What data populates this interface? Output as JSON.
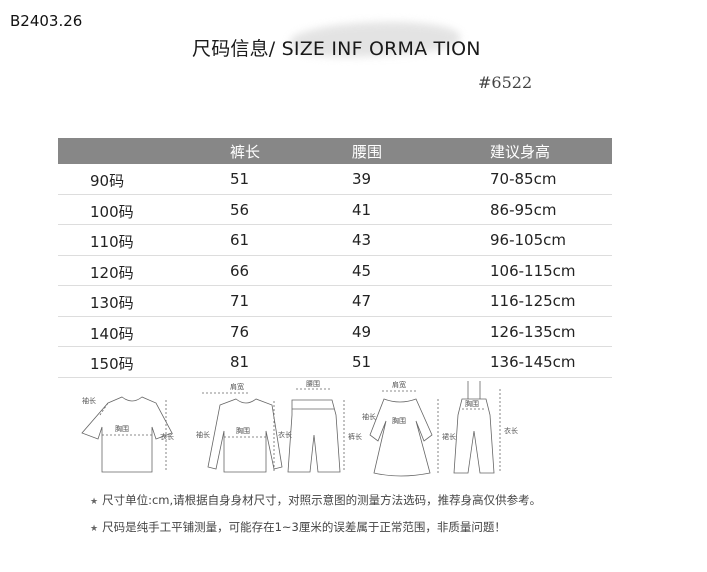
{
  "header": {
    "code": "B2403.26",
    "title": "尺码信息/ SIZE INF ORMA TION",
    "style_number": "#6522"
  },
  "table": {
    "columns": [
      "",
      "裤长",
      "腰围",
      "建议身高"
    ],
    "rows": [
      [
        "90码",
        "51",
        "39",
        "70-85cm"
      ],
      [
        "100码",
        "56",
        "41",
        "86-95cm"
      ],
      [
        "110码",
        "61",
        "43",
        "96-105cm"
      ],
      [
        "120码",
        "66",
        "45",
        "106-115cm"
      ],
      [
        "130码",
        "71",
        "47",
        "116-125cm"
      ],
      [
        "140码",
        "76",
        "49",
        "126-135cm"
      ],
      [
        "150码",
        "81",
        "51",
        "136-145cm"
      ]
    ]
  },
  "diagrams": {
    "tshirt": {
      "sleeve": "袖长",
      "chest": "胸围",
      "length": "衣长"
    },
    "sweater": {
      "shoulder": "肩宽",
      "sleeve": "袖长",
      "chest": "胸围",
      "length": "衣长"
    },
    "shorts": {
      "waist": "腰围",
      "length": "裤长"
    },
    "dress": {
      "shoulder": "肩宽",
      "sleeve": "袖长",
      "chest": "胸围",
      "length": "裙长"
    },
    "overalls": {
      "chest": "胸围",
      "length": "衣长"
    }
  },
  "notes": [
    "尺寸单位:cm,请根据自身身材尺寸，对照示意图的测量方法选码，推荐身高仅供参考。",
    "尺码是纯手工平铺测量，可能存在1~3厘米的误差属于正常范围，非质量问题！"
  ],
  "colors": {
    "header_band": "#878787",
    "row_divider": "#dddddd"
  }
}
